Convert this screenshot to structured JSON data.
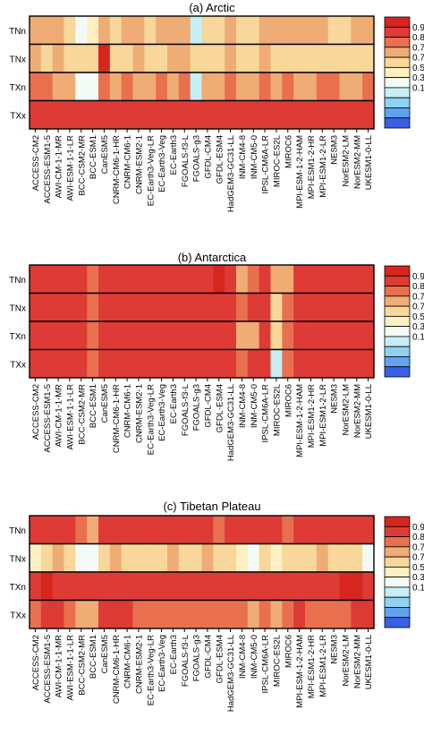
{
  "colors": {
    "scale": [
      "#3a5fe6",
      "#61a3ef",
      "#8fd3f2",
      "#c6eef6",
      "#f4fbf7",
      "#fdf0c2",
      "#f7d79a",
      "#f0ac75",
      "#e8704f",
      "#df3b36",
      "#d7261f"
    ]
  },
  "chart_data": [
    {
      "type": "heatmap",
      "title": "(a) Arctic",
      "rows": [
        "TNn",
        "TNx",
        "TXn",
        "TXx"
      ],
      "columns": [
        "ACCESS-CM2",
        "ACCESS-ESM1-5",
        "AWI-CM-1-1-MR",
        "AWI-ESM-1-1-LR",
        "BCC-CSM2-MR",
        "BCC-ESM1",
        "CanESM5",
        "CNRM-CM6-1-HR",
        "CNRM-CM6-1",
        "CNRM-ESM2-1",
        "EC-Earth3-Veg-LR",
        "EC-Earth3-Veg",
        "EC-Earth3",
        "FGOALS-f3-L",
        "FGOALS-g3",
        "GFDL-CM4",
        "GFDL-ESM4",
        "HadGEM3-GC31-LL",
        "INM-CM4-8",
        "INM-CM5-0",
        "IPSL-CM6A-LR",
        "MIROC-ES2L",
        "MIROC6",
        "MPI-ESM-1-2-HAM",
        "MPI-ESM1-2-HR",
        "MPI-ESM1-2-LR",
        "NESM3",
        "NorESM2-LM",
        "NorESM2-MM",
        "UKESM1-0-LL"
      ],
      "values": [
        [
          0.84,
          0.83,
          0.82,
          0.81,
          0.72,
          0.74,
          0.84,
          0.81,
          0.83,
          0.82,
          0.81,
          0.82,
          0.82,
          0.84,
          0.6,
          0.8,
          0.81,
          0.84,
          0.81,
          0.8,
          0.83,
          0.82,
          0.85,
          0.82,
          0.82,
          0.82,
          0.81,
          0.8,
          0.82,
          0.82
        ],
        [
          0.82,
          0.79,
          0.82,
          0.81,
          0.8,
          0.8,
          0.94,
          0.8,
          0.8,
          0.82,
          0.8,
          0.79,
          0.82,
          0.84,
          0.8,
          0.81,
          0.81,
          0.84,
          0.81,
          0.8,
          0.82,
          0.8,
          0.78,
          0.8,
          0.8,
          0.8,
          0.81,
          0.79,
          0.8,
          0.81
        ],
        [
          0.86,
          0.86,
          0.85,
          0.85,
          0.72,
          0.73,
          0.86,
          0.85,
          0.86,
          0.85,
          0.85,
          0.86,
          0.85,
          0.86,
          0.62,
          0.84,
          0.85,
          0.86,
          0.84,
          0.84,
          0.86,
          0.82,
          0.86,
          0.85,
          0.85,
          0.86,
          0.86,
          0.85,
          0.85,
          0.86
        ],
        [
          0.93,
          0.93,
          0.93,
          0.93,
          0.93,
          0.93,
          0.93,
          0.93,
          0.93,
          0.93,
          0.93,
          0.93,
          0.93,
          0.93,
          0.93,
          0.93,
          0.93,
          0.93,
          0.93,
          0.93,
          0.93,
          0.93,
          0.93,
          0.93,
          0.93,
          0.93,
          0.93,
          0.93,
          0.93,
          0.93
        ]
      ],
      "legend_ticks": [
        "0.94",
        "0.86",
        "0.78",
        "0.7",
        "0.5",
        "0.3",
        "0.1"
      ],
      "legend_placement": "right"
    },
    {
      "type": "heatmap",
      "title": "(b) Antarctica",
      "rows": [
        "TNn",
        "TNx",
        "TXn",
        "TXx"
      ],
      "columns": [
        "ACCESS-CM2",
        "ACCESS-ESM1-5",
        "AWI-CM-1-1-MR",
        "AWI-ESM-1-1-LR",
        "BCC-CSM2-MR",
        "BCC-ESM1",
        "CanESM5",
        "CNRM-CM6-1-HR",
        "CNRM-CM6-1",
        "CNRM-ESM2-1",
        "EC-Earth3-Veg-LR",
        "EC-Earth3-Veg",
        "EC-Earth3",
        "FGOALS-f3-L",
        "FGOALS-g3",
        "GFDL-CM4",
        "GFDL-ESM4",
        "HadGEM3-GC31-LL",
        "INM-CM4-8",
        "INM-CM5-0",
        "IPSL-CM6A-LR",
        "MIROC-ES2L",
        "MIROC6",
        "MPI-ESM-1-2-HAM",
        "MPI-ESM1-2-HR",
        "MPI-ESM1-2-LR",
        "NESM3",
        "NorESM2-LM",
        "NorESM2-MM",
        "UKESM1-0-LL"
      ],
      "values": [
        [
          0.93,
          0.92,
          0.93,
          0.93,
          0.93,
          0.86,
          0.93,
          0.93,
          0.92,
          0.92,
          0.92,
          0.92,
          0.92,
          0.93,
          0.93,
          0.92,
          0.96,
          0.93,
          0.82,
          0.86,
          0.92,
          0.84,
          0.84,
          0.93,
          0.92,
          0.92,
          0.92,
          0.93,
          0.92,
          0.92
        ],
        [
          0.93,
          0.92,
          0.92,
          0.92,
          0.92,
          0.88,
          0.93,
          0.92,
          0.92,
          0.92,
          0.92,
          0.92,
          0.92,
          0.92,
          0.92,
          0.92,
          0.93,
          0.93,
          0.88,
          0.9,
          0.92,
          0.78,
          0.86,
          0.92,
          0.92,
          0.92,
          0.92,
          0.92,
          0.92,
          0.92
        ],
        [
          0.93,
          0.92,
          0.92,
          0.92,
          0.92,
          0.88,
          0.93,
          0.92,
          0.92,
          0.92,
          0.92,
          0.92,
          0.92,
          0.92,
          0.92,
          0.92,
          0.93,
          0.93,
          0.82,
          0.84,
          0.92,
          0.8,
          0.86,
          0.92,
          0.92,
          0.92,
          0.92,
          0.92,
          0.92,
          0.92
        ],
        [
          0.93,
          0.92,
          0.92,
          0.92,
          0.92,
          0.88,
          0.93,
          0.92,
          0.92,
          0.92,
          0.92,
          0.92,
          0.92,
          0.92,
          0.92,
          0.92,
          0.93,
          0.93,
          0.88,
          0.9,
          0.92,
          0.68,
          0.86,
          0.92,
          0.92,
          0.92,
          0.92,
          0.92,
          0.92,
          0.92
        ]
      ],
      "legend_ticks": [
        "0.94",
        "0.86",
        "0.78",
        "0.7",
        "0.5",
        "0.3",
        "0.1"
      ],
      "legend_placement": "right"
    },
    {
      "type": "heatmap",
      "title": "(c) Tibetan Plateau",
      "rows": [
        "TNn",
        "TNx",
        "TXn",
        "TXx"
      ],
      "columns": [
        "ACCESS-CM2",
        "ACCESS-ESM1-5",
        "AWI-CM-1-1-MR",
        "AWI-ESM-1-1-LR",
        "BCC-CSM2-MR",
        "BCC-ESM1",
        "CanESM5",
        "CNRM-CM6-1-HR",
        "CNRM-CM6-1",
        "CNRM-ESM2-1",
        "EC-Earth3-Veg-LR",
        "EC-Earth3-Veg",
        "EC-Earth3",
        "FGOALS-f3-L",
        "FGOALS-g3",
        "GFDL-CM4",
        "GFDL-ESM4",
        "HadGEM3-GC31-LL",
        "INM-CM4-8",
        "INM-CM5-0",
        "IPSL-CM6A-LR",
        "MIROC-ES2L",
        "MIROC6",
        "MPI-ESM-1-2-HAM",
        "MPI-ESM1-2-HR",
        "MPI-ESM1-2-LR",
        "NESM3",
        "NorESM2-LM",
        "NorESM2-MM",
        "UKESM1-0-LL"
      ],
      "values": [
        [
          0.92,
          0.92,
          0.93,
          0.92,
          0.88,
          0.82,
          0.92,
          0.92,
          0.92,
          0.92,
          0.92,
          0.9,
          0.92,
          0.92,
          0.9,
          0.92,
          0.86,
          0.92,
          0.92,
          0.92,
          0.92,
          0.92,
          0.86,
          0.92,
          0.92,
          0.92,
          0.92,
          0.92,
          0.92,
          0.92
        ],
        [
          0.76,
          0.8,
          0.82,
          0.8,
          0.71,
          0.72,
          0.8,
          0.82,
          0.8,
          0.79,
          0.8,
          0.8,
          0.82,
          0.8,
          0.8,
          0.82,
          0.8,
          0.78,
          0.74,
          0.72,
          0.78,
          0.74,
          0.8,
          0.78,
          0.79,
          0.82,
          0.8,
          0.78,
          0.81,
          0.72
        ],
        [
          0.93,
          0.94,
          0.93,
          0.93,
          0.93,
          0.92,
          0.93,
          0.93,
          0.93,
          0.93,
          0.93,
          0.93,
          0.93,
          0.93,
          0.93,
          0.93,
          0.93,
          0.93,
          0.93,
          0.93,
          0.93,
          0.93,
          0.93,
          0.93,
          0.93,
          0.93,
          0.93,
          0.94,
          0.95,
          0.93
        ],
        [
          0.86,
          0.9,
          0.9,
          0.86,
          0.84,
          0.84,
          0.9,
          0.9,
          0.9,
          0.88,
          0.89,
          0.88,
          0.88,
          0.88,
          0.88,
          0.88,
          0.88,
          0.88,
          0.86,
          0.84,
          0.88,
          0.82,
          0.88,
          0.9,
          0.88,
          0.88,
          0.86,
          0.88,
          0.9,
          0.9
        ]
      ],
      "legend_ticks": [
        "0.94",
        "0.86",
        "0.78",
        "0.7",
        "0.5",
        "0.3",
        "0.1"
      ],
      "legend_placement": "right"
    }
  ]
}
